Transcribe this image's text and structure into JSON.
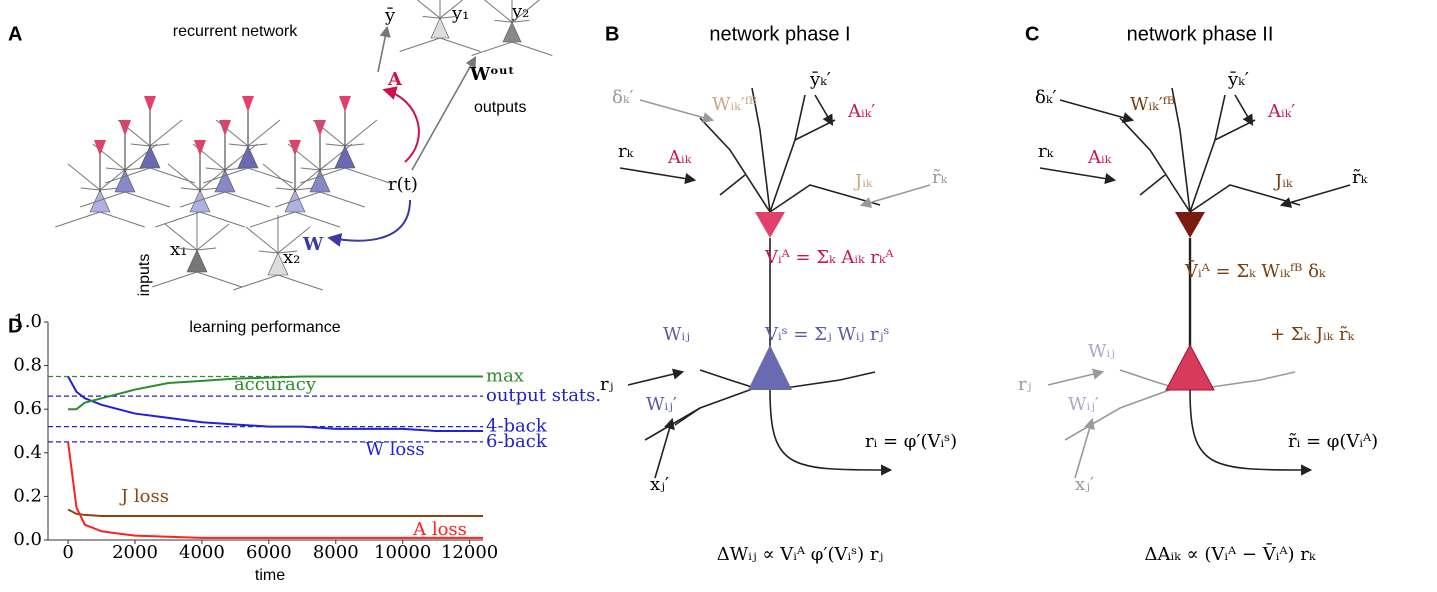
{
  "panel_a": {
    "label": "A",
    "title": "recurrent network",
    "y_bar": "ȳ",
    "y1": "y₁",
    "y2": "y₂",
    "a": "A",
    "w_out": "Wᵒᵘᵗ",
    "outputs": "outputs",
    "r_t": "r(t)",
    "w": "W",
    "x1": "x₁",
    "x2": "x₂",
    "inputs": "inputs"
  },
  "panel_b": {
    "label": "B",
    "title": "network phase I",
    "delta": "δₖ′",
    "w_fb": "Wᵢₖ′ᶠᴮ",
    "y_bar": "ȳₖ′",
    "a_ik2": "Aᵢₖ′",
    "r_k": "rₖ",
    "a_ik": "Aᵢₖ",
    "j_ik": "Jᵢₖ",
    "r_tilde": "r̃ₖ",
    "v_a": "Vᵢᴬ =  Σₖ Aᵢₖ rₖᴬ",
    "v_s": "Vᵢˢ =  Σⱼ Wᵢⱼ rⱼˢ",
    "w_ij": "Wᵢⱼ",
    "r_j": "rⱼ",
    "w_ij2": "Wᵢⱼ′",
    "x_j": "xⱼ′",
    "r_i": "rᵢ = φ′(Vᵢˢ)",
    "rule": "ΔWᵢⱼ ∝ Vᵢᴬ φ′(Vᵢˢ) rⱼ"
  },
  "panel_c": {
    "label": "C",
    "title": "network phase II",
    "delta": "δₖ′",
    "w_fb": "Wᵢₖ′ᶠᴮ",
    "y_bar": "ȳₖ′",
    "a_ik2": "Aᵢₖ′",
    "r_k": "rₖ",
    "a_ik": "Aᵢₖ",
    "j_ik": "Jᵢₖ",
    "r_tilde": "r̃ₖ",
    "v_bar": "V̄ᵢᴬ = Σₖ Wᵢₖᶠᴮ δₖ",
    "v_bar2": "+ Σₖ Jᵢₖ r̃ₖ",
    "w_ij": "Wᵢⱼ",
    "r_j": "rⱼ",
    "w_ij2": "Wᵢⱼ′",
    "x_j": "xⱼ′",
    "r_i": "r̃ᵢ = φ(Vᵢᴬ)",
    "rule": "ΔAᵢₖ ∝ (Vᵢᴬ − V̄ᵢᴬ) rₖ"
  },
  "chart_data": {
    "type": "line",
    "panel_label": "D",
    "title": "learning performance",
    "x_label": "time",
    "x": [
      0,
      250,
      500,
      1000,
      1500,
      2000,
      3000,
      4000,
      5000,
      6000,
      7000,
      8000,
      9000,
      10000,
      11000,
      12400
    ],
    "series": [
      {
        "name": "W loss",
        "color": "#1f1fe0",
        "values": [
          0.75,
          0.68,
          0.65,
          0.62,
          0.6,
          0.58,
          0.56,
          0.54,
          0.53,
          0.52,
          0.52,
          0.51,
          0.51,
          0.51,
          0.5,
          0.5
        ]
      },
      {
        "name": "accuracy",
        "color": "#2e8b2e",
        "values": [
          0.6,
          0.6,
          0.63,
          0.65,
          0.67,
          0.69,
          0.72,
          0.73,
          0.74,
          0.745,
          0.75,
          0.75,
          0.75,
          0.75,
          0.75,
          0.75
        ]
      },
      {
        "name": "J loss",
        "color": "#8b4513",
        "values": [
          0.14,
          0.12,
          0.115,
          0.11,
          0.11,
          0.11,
          0.11,
          0.11,
          0.11,
          0.11,
          0.11,
          0.11,
          0.11,
          0.11,
          0.11,
          0.11
        ]
      },
      {
        "name": "A loss",
        "color": "#ff2020",
        "values": [
          0.45,
          0.15,
          0.07,
          0.04,
          0.03,
          0.02,
          0.015,
          0.01,
          0.01,
          0.01,
          0.01,
          0.01,
          0.01,
          0.01,
          0.01,
          0.01
        ]
      }
    ],
    "hlines": [
      {
        "label": "max",
        "value": 0.75,
        "color": "#2e8b2e"
      },
      {
        "label": "output stats.",
        "value": 0.66,
        "color": "#2020cc"
      },
      {
        "label": "4-back",
        "value": 0.52,
        "color": "#2020cc"
      },
      {
        "label": "6-back",
        "value": 0.45,
        "color": "#2020cc"
      }
    ],
    "xlim": [
      -600,
      12400
    ],
    "ylim": [
      0,
      1
    ],
    "xticks": [
      0,
      2000,
      4000,
      6000,
      8000,
      10000,
      12000
    ],
    "yticks": [
      {
        "value": 0,
        "label": "0.0"
      },
      {
        "value": 0.2,
        "label": "0.2"
      },
      {
        "value": 0.4,
        "label": "0.4"
      },
      {
        "value": 0.6,
        "label": "0.6"
      },
      {
        "value": 0.8,
        "label": "0.8"
      },
      {
        "value": 1,
        "label": "1.0"
      }
    ]
  }
}
